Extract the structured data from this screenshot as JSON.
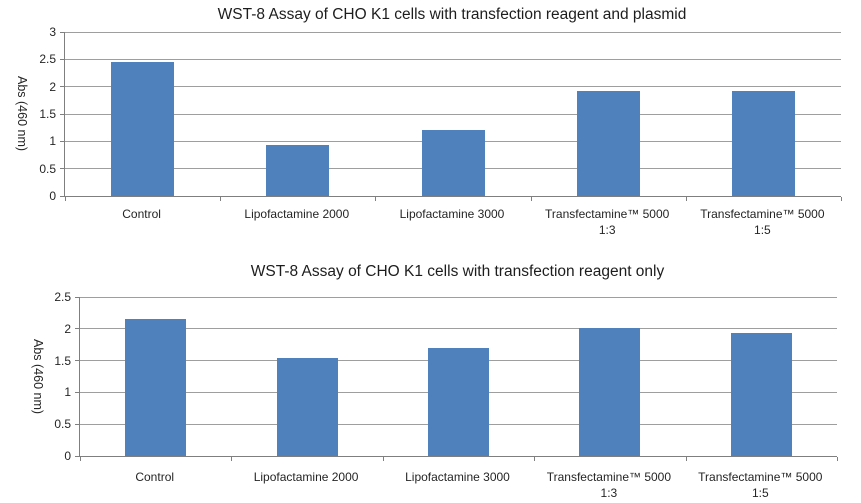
{
  "page": {
    "background": "#ffffff"
  },
  "colors": {
    "bar": "#4F81BD",
    "gridline": "#9e9e9e",
    "axis": "#7f7f7f",
    "text": "#252525"
  },
  "chart_data": [
    {
      "type": "bar",
      "title": "WST-8 Assay of CHO K1 cells with transfection reagent and plasmid",
      "xlabel": "",
      "ylabel": "Abs (460 nm)",
      "categories": [
        "Control",
        "Lipofactamine 2000",
        "Lipofactamine 3000",
        "Transfectamine™ 5000 1:3",
        "Transfectamine™ 5000 1:5"
      ],
      "category_lines": [
        [
          "Control"
        ],
        [
          "Lipofactamine 2000"
        ],
        [
          "Lipofactamine 3000"
        ],
        [
          "Transfectamine™ 5000",
          "1:3"
        ],
        [
          "Transfectamine™ 5000",
          "1:5"
        ]
      ],
      "values": [
        2.45,
        0.93,
        1.21,
        1.92,
        1.92
      ],
      "ylim": [
        0,
        3
      ],
      "yticks": [
        0,
        0.5,
        1,
        1.5,
        2,
        2.5,
        3
      ],
      "grid": true,
      "legend": false,
      "bar_color": "#4F81BD"
    },
    {
      "type": "bar",
      "title": "WST-8 Assay of CHO K1 cells with transfection reagent only",
      "xlabel": "",
      "ylabel": "Abs (460 nm)",
      "categories": [
        "Control",
        "Lipofactamine 2000",
        "Lipofactamine 3000",
        "Transfectamine™ 5000 1:3",
        "Transfectamine™ 5000 1:5"
      ],
      "category_lines": [
        [
          "Control"
        ],
        [
          "Lipofactamine 2000"
        ],
        [
          "Lipofactamine 3000"
        ],
        [
          "Transfectamine™ 5000",
          "1:3"
        ],
        [
          "Transfectamine™ 5000",
          "1:5"
        ]
      ],
      "values": [
        2.15,
        1.54,
        1.7,
        2.02,
        1.93
      ],
      "ylim": [
        0,
        2.5
      ],
      "yticks": [
        0,
        0.5,
        1,
        1.5,
        2,
        2.5
      ],
      "grid": true,
      "legend": false,
      "bar_color": "#4F81BD"
    }
  ]
}
